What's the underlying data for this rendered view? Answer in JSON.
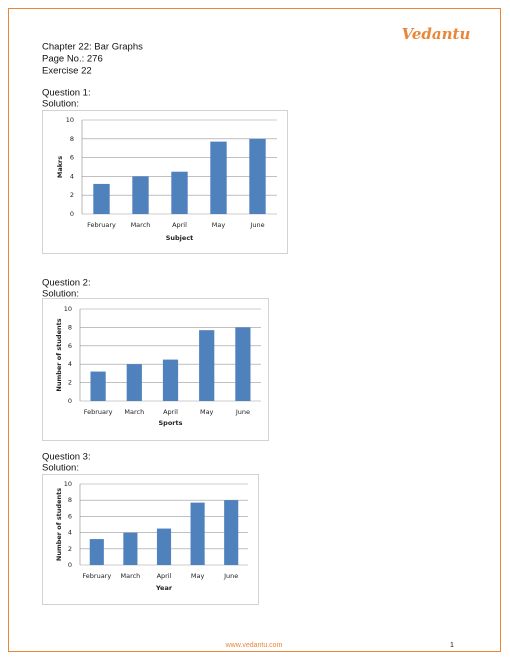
{
  "header": {
    "chapter": "Chapter 22: Bar Graphs",
    "page": "Page No.: 276",
    "exercise": "Exercise 22"
  },
  "logo": "Vedantu",
  "questions": [
    {
      "question": "Question 1:",
      "solution": "Solution:",
      "chart": {
        "type": "bar",
        "categories": [
          "February",
          "March",
          "April",
          "May",
          "June"
        ],
        "values": [
          3.2,
          4,
          4.5,
          7.7,
          8
        ],
        "color": "#4f81bd",
        "ylim": [
          0,
          10
        ],
        "yticks": [
          0,
          2,
          4,
          6,
          8,
          10
        ],
        "grid": true,
        "x_label": "Subject",
        "y_label": "Makrs"
      }
    },
    {
      "question": "Question 2:",
      "solution": "Solution:",
      "chart": {
        "type": "bar",
        "categories": [
          "February",
          "March",
          "April",
          "May",
          "June"
        ],
        "values": [
          3.2,
          4,
          4.5,
          7.7,
          8
        ],
        "color": "#4f81bd",
        "ylim": [
          0,
          10
        ],
        "yticks": [
          0,
          2,
          4,
          6,
          8,
          10
        ],
        "grid": true,
        "x_label": "Sports",
        "y_label": "Number of students"
      }
    },
    {
      "question": "Question 3:",
      "solution": "Solution:",
      "chart": {
        "type": "bar",
        "categories": [
          "February",
          "March",
          "April",
          "May",
          "June"
        ],
        "values": [
          3.2,
          4,
          4.5,
          7.7,
          8
        ],
        "color": "#4f81bd",
        "ylim": [
          0,
          10
        ],
        "yticks": [
          0,
          2,
          4,
          6,
          8,
          10
        ],
        "grid": true,
        "x_label": "Year",
        "y_label": "Number of students"
      }
    }
  ],
  "footer": {
    "website": "www.vedantu.com",
    "page_number": "1"
  }
}
